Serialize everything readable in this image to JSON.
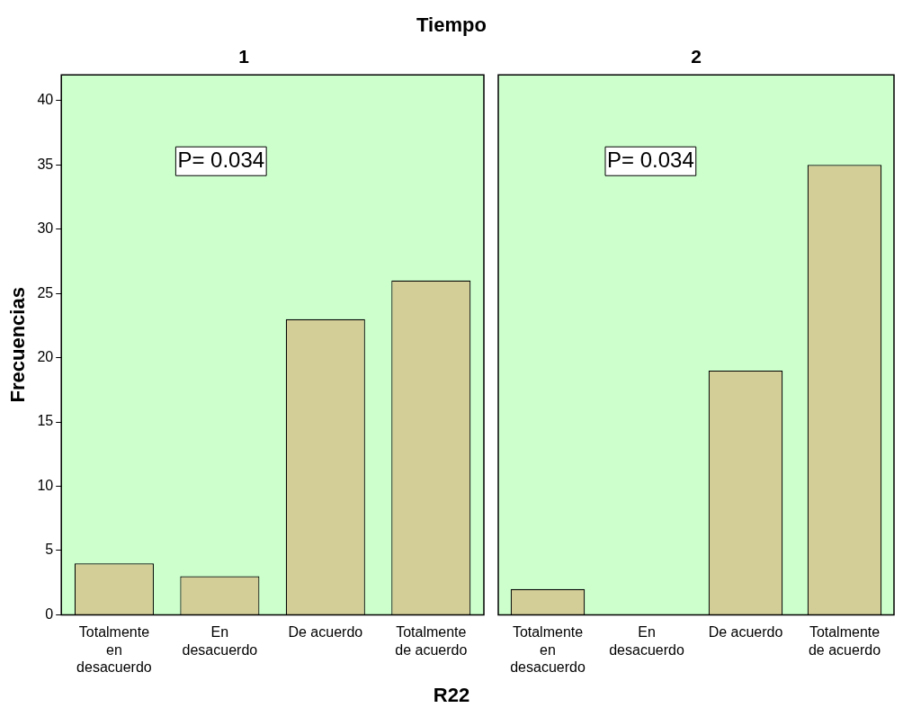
{
  "chart_data": [
    {
      "type": "bar",
      "title": "1",
      "subtitle": "Tiempo",
      "xlabel": "R22",
      "ylabel": "Frecuencias",
      "categories": [
        "Totalmente en desacuerdo",
        "En desacuerdo",
        "De acuerdo",
        "Totalmente de acuerdo"
      ],
      "values": [
        4,
        3,
        23,
        26
      ],
      "color": "#d3ce97",
      "ylim": [
        0,
        42
      ],
      "yticks": [
        0,
        5,
        10,
        15,
        20,
        25,
        30,
        35,
        40
      ],
      "grid": false,
      "legend": false,
      "annotations": [
        "P= 0.034"
      ]
    },
    {
      "type": "bar",
      "title": "2",
      "categories": [
        "Totalmente en desacuerdo",
        "En desacuerdo",
        "De acuerdo",
        "Totalmente de acuerdo"
      ],
      "values": [
        2,
        0,
        19,
        35
      ],
      "color": "#d3ce97",
      "ylim": [
        0,
        42
      ],
      "yticks": [
        0,
        5,
        10,
        15,
        20,
        25,
        30,
        35,
        40
      ],
      "grid": false,
      "legend": false,
      "tick_labels": "x",
      "annotations": [
        "P= 0.034"
      ]
    }
  ]
}
